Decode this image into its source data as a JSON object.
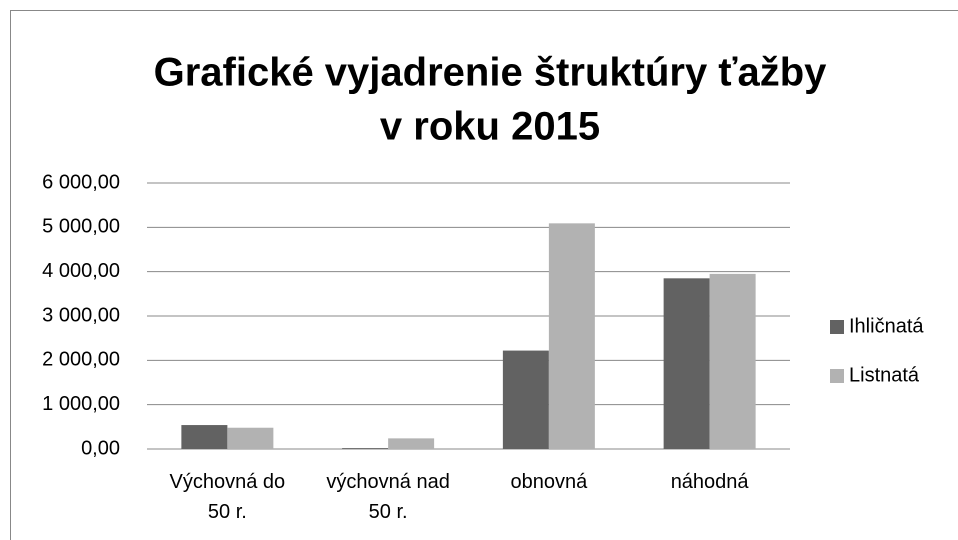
{
  "chart_data": {
    "type": "bar",
    "title": [
      "Grafické vyjadrenie štruktúry ťažby",
      "v roku 2015"
    ],
    "categories": [
      "Výchovná do 50 r.",
      "výchovná nad 50 r.",
      "obnovná",
      "náhodná"
    ],
    "series": [
      {
        "name": "Ihličnatá",
        "color": "#626262",
        "values": [
          540,
          20,
          2220,
          3850
        ]
      },
      {
        "name": "Listnatá",
        "color": "#b2b2b2",
        "values": [
          480,
          240,
          5090,
          3950
        ]
      }
    ],
    "ylim": [
      0,
      6000
    ],
    "yticks": [
      {
        "value": 0,
        "label": "0,00"
      },
      {
        "value": 1000,
        "label": "1 000,00"
      },
      {
        "value": 2000,
        "label": "2 000,00"
      },
      {
        "value": 3000,
        "label": "3 000,00"
      },
      {
        "value": 4000,
        "label": "4 000,00"
      },
      {
        "value": 5000,
        "label": "5 000,00"
      },
      {
        "value": 6000,
        "label": "6 000,00"
      }
    ],
    "grid": true,
    "legend": "right"
  }
}
